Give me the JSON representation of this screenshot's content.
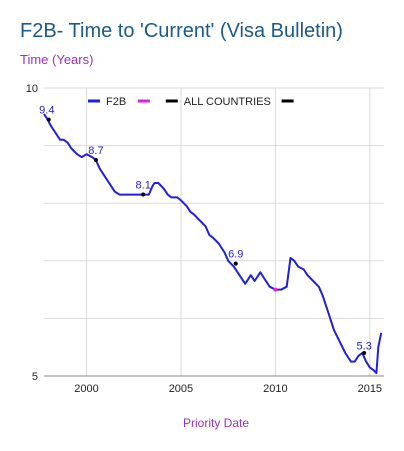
{
  "title": "F2B- Time to 'Current' (Visa Bulletin)",
  "subtitle": "Time (Years)",
  "colors": {
    "title": "#1a5a8c",
    "subtitle": "#9a2fbf",
    "grid": "#d9d9d9",
    "f2b": "#1f1fe0",
    "magenta": "#e020e0",
    "black": "#000000"
  },
  "chart_data": {
    "type": "line",
    "title": "F2B- Time to 'Current' (Visa Bulletin)",
    "ylabel": "Time (Years)",
    "xlabel": "Priority Date",
    "x_ticks": [
      "2000",
      "2005",
      "2010",
      "2015"
    ],
    "y_ticks": [
      "5",
      "10"
    ],
    "xlim": [
      1997.75,
      2015.75
    ],
    "ylim": [
      5,
      10
    ],
    "grid": true,
    "legend_position": "top",
    "legend": [
      {
        "label": "F2B",
        "color": "#1f1fe0"
      },
      {
        "label": "",
        "color": "#e020e0"
      },
      {
        "label": "ALL COUNTRIES",
        "color": "#000000"
      },
      {
        "label": "",
        "color": "#000000"
      }
    ],
    "annotations": [
      {
        "x": 1997.9,
        "y": 9.4,
        "label": "9.4"
      },
      {
        "x": 2000.5,
        "y": 8.7,
        "label": "8.7"
      },
      {
        "x": 2003.0,
        "y": 8.1,
        "label": "8.1"
      },
      {
        "x": 2007.9,
        "y": 6.9,
        "label": "6.9"
      },
      {
        "x": 2014.7,
        "y": 5.3,
        "label": "5.3"
      }
    ],
    "markers": [
      {
        "x": 1998.0,
        "y": 9.45,
        "color": "#000000"
      },
      {
        "x": 2000.5,
        "y": 8.75,
        "color": "#000000"
      },
      {
        "x": 2003.0,
        "y": 8.15,
        "color": "#000000"
      },
      {
        "x": 2007.9,
        "y": 6.95,
        "color": "#000000"
      },
      {
        "x": 2010.0,
        "y": 6.5,
        "color": "#e020e0"
      },
      {
        "x": 2014.7,
        "y": 5.4,
        "color": "#000000"
      }
    ],
    "series": [
      {
        "name": "F2B",
        "color": "#1f1fe0",
        "x": [
          1997.75,
          1997.95,
          1998.1,
          1998.3,
          1998.6,
          1998.8,
          1999.0,
          1999.2,
          1999.5,
          1999.75,
          2000.0,
          2000.3,
          2000.5,
          2000.7,
          2001.0,
          2001.3,
          2001.5,
          2001.75,
          2002.0,
          2002.5,
          2003.0,
          2003.3,
          2003.5,
          2003.6,
          2003.8,
          2004.1,
          2004.3,
          2004.5,
          2004.8,
          2005.0,
          2005.3,
          2005.5,
          2005.7,
          2006.0,
          2006.3,
          2006.5,
          2006.7,
          2007.0,
          2007.3,
          2007.5,
          2007.8,
          2008.0,
          2008.2,
          2008.4,
          2008.7,
          2008.9,
          2009.2,
          2009.5,
          2009.7,
          2010.0,
          2010.3,
          2010.6,
          2010.8,
          2011.0,
          2011.2,
          2011.5,
          2011.7,
          2012.0,
          2012.3,
          2012.5,
          2012.8,
          2013.1,
          2013.4,
          2013.7,
          2014.0,
          2014.2,
          2014.4,
          2014.6,
          2014.8,
          2015.0,
          2015.2,
          2015.35,
          2015.45,
          2015.6
        ],
        "y": [
          9.55,
          9.45,
          9.35,
          9.25,
          9.1,
          9.1,
          9.05,
          8.95,
          8.85,
          8.8,
          8.85,
          8.8,
          8.75,
          8.6,
          8.45,
          8.3,
          8.2,
          8.15,
          8.15,
          8.15,
          8.15,
          8.15,
          8.3,
          8.35,
          8.35,
          8.25,
          8.15,
          8.1,
          8.1,
          8.05,
          7.95,
          7.85,
          7.8,
          7.7,
          7.6,
          7.45,
          7.4,
          7.3,
          7.15,
          7.0,
          6.9,
          6.8,
          6.7,
          6.6,
          6.75,
          6.65,
          6.8,
          6.65,
          6.55,
          6.5,
          6.5,
          6.55,
          7.05,
          7.0,
          6.9,
          6.85,
          6.75,
          6.65,
          6.55,
          6.4,
          6.1,
          5.8,
          5.6,
          5.4,
          5.25,
          5.25,
          5.35,
          5.4,
          5.25,
          5.15,
          5.1,
          5.05,
          5.5,
          5.75
        ]
      }
    ]
  }
}
